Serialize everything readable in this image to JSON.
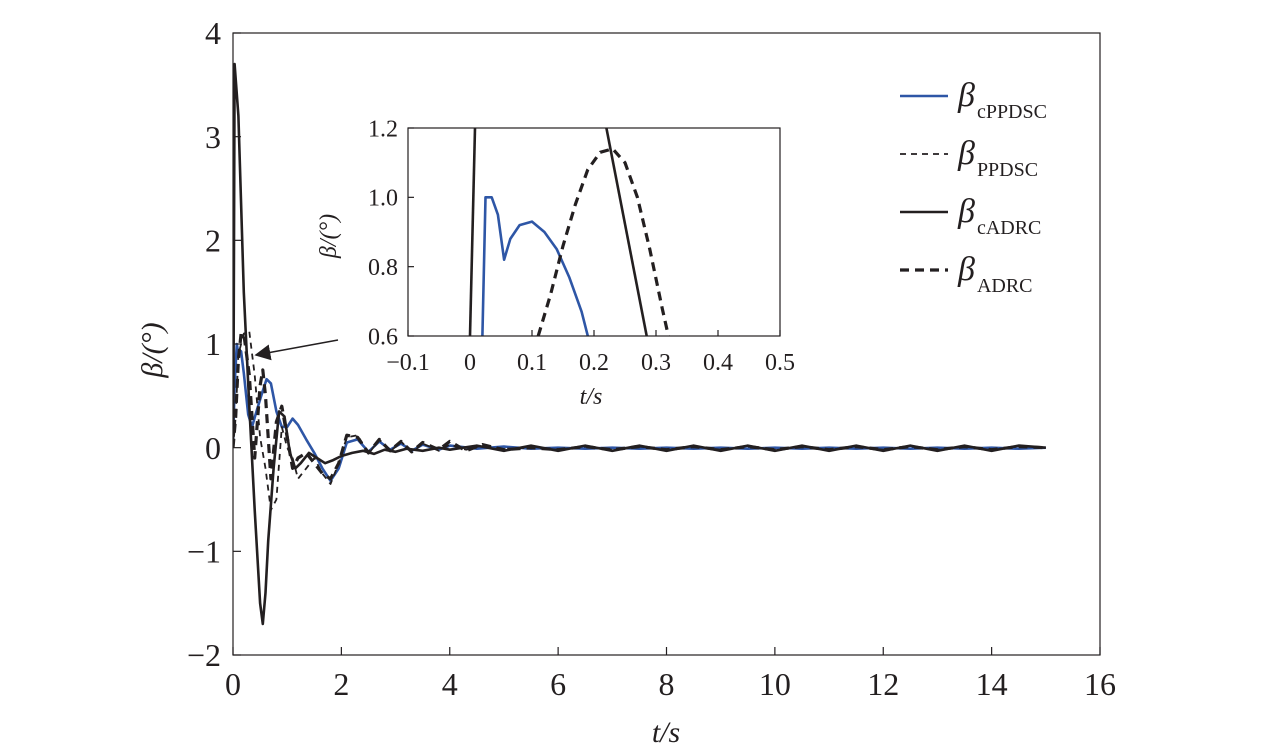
{
  "chart_data": [
    {
      "type": "line",
      "title": "",
      "xlabel": "t/s",
      "ylabel": "β/(°)",
      "xlim": [
        0,
        16
      ],
      "ylim": [
        -2,
        4
      ],
      "x_ticks": [
        0,
        2,
        4,
        6,
        8,
        10,
        12,
        14,
        16
      ],
      "y_ticks": [
        -2,
        -1,
        0,
        1,
        2,
        3,
        4
      ],
      "x_tick_labels": [
        "0",
        "2",
        "4",
        "6",
        "8",
        "10",
        "12",
        "14",
        "16"
      ],
      "y_tick_labels": [
        "−2",
        "−1",
        "0",
        "1",
        "2",
        "3",
        "4"
      ],
      "grid": false,
      "legend_position": "top-right",
      "series": [
        {
          "name": "β cPPDSC",
          "legend_base": "β",
          "legend_sub": "cPPDSC",
          "color": "#2e56a6",
          "style": "solid",
          "x": [
            0,
            0.03,
            0.07,
            0.1,
            0.15,
            0.2,
            0.28,
            0.35,
            0.45,
            0.55,
            0.62,
            0.7,
            0.8,
            0.9,
            1.0,
            1.1,
            1.2,
            1.35,
            1.5,
            1.65,
            1.8,
            1.95,
            2.1,
            2.3,
            2.5,
            2.7,
            2.9,
            3.1,
            3.3,
            3.5,
            3.8,
            4.0,
            4.5,
            5.0,
            5.5,
            6.0,
            6.5,
            7.0,
            7.5,
            8.0,
            8.5,
            9.0,
            9.5,
            10.0,
            10.5,
            11.0,
            11.5,
            12.0,
            12.5,
            13.0,
            13.5,
            14.0,
            14.5,
            15.0
          ],
          "values": [
            0.0,
            0.6,
            1.0,
            0.9,
            0.93,
            0.72,
            0.32,
            0.2,
            0.38,
            0.55,
            0.66,
            0.62,
            0.35,
            0.2,
            0.2,
            0.28,
            0.22,
            0.08,
            -0.05,
            -0.2,
            -0.32,
            -0.2,
            0.05,
            0.08,
            -0.04,
            0.06,
            -0.02,
            0.04,
            -0.03,
            0.03,
            -0.02,
            0.02,
            -0.01,
            0.01,
            -0.01,
            0.0,
            -0.01,
            0.0,
            -0.01,
            0.0,
            -0.01,
            0.0,
            -0.01,
            0.0,
            -0.01,
            0.0,
            -0.01,
            0.0,
            -0.01,
            0.0,
            -0.01,
            0.0,
            -0.01,
            0.0
          ]
        },
        {
          "name": "β PPDSC",
          "legend_base": "β",
          "legend_sub": "PPDSC",
          "color": "#231f20",
          "style": "dashed-thin",
          "x": [
            0,
            0.05,
            0.1,
            0.15,
            0.2,
            0.3,
            0.4,
            0.5,
            0.6,
            0.7,
            0.8,
            0.9,
            1.0,
            1.1,
            1.2,
            1.35,
            1.5,
            1.65,
            1.8,
            1.95,
            2.1,
            2.3,
            2.5,
            2.7,
            2.9,
            3.1,
            3.3,
            3.5,
            3.8,
            4.0,
            4.3,
            4.6,
            5.0,
            5.5,
            6.0,
            6.5,
            7.0,
            7.5,
            8.0,
            8.5,
            9.0,
            9.5,
            10.0,
            10.5,
            11.0,
            11.5,
            12.0,
            12.5,
            13.0,
            13.5,
            14.0,
            14.5,
            15.0
          ],
          "values": [
            0.0,
            0.3,
            0.9,
            1.0,
            1.1,
            1.12,
            0.7,
            0.1,
            -0.2,
            -0.6,
            -0.5,
            0.2,
            0.0,
            -0.1,
            -0.3,
            -0.2,
            -0.1,
            -0.25,
            -0.35,
            -0.15,
            0.1,
            0.12,
            -0.06,
            0.08,
            -0.04,
            0.06,
            -0.05,
            0.04,
            -0.03,
            0.03,
            -0.02,
            0.02,
            -0.01,
            0.0,
            -0.02,
            0.01,
            -0.02,
            0.01,
            -0.02,
            0.01,
            -0.02,
            0.01,
            -0.02,
            0.01,
            -0.02,
            0.01,
            -0.02,
            0.01,
            -0.02,
            0.01,
            -0.02,
            0.01,
            0.0
          ]
        },
        {
          "name": "β cADRC",
          "legend_base": "β",
          "legend_sub": "cADRC",
          "color": "#231f20",
          "style": "solid",
          "x": [
            0,
            0.01,
            0.03,
            0.1,
            0.2,
            0.3,
            0.4,
            0.5,
            0.55,
            0.6,
            0.65,
            0.75,
            0.85,
            0.95,
            1.05,
            1.15,
            1.25,
            1.4,
            1.55,
            1.7,
            1.85,
            2.0,
            2.2,
            2.4,
            2.6,
            2.8,
            3.0,
            3.2,
            3.5,
            3.8,
            4.0,
            4.5,
            5.0,
            5.5,
            6.0,
            6.5,
            7.0,
            7.5,
            8.0,
            8.5,
            9.0,
            9.5,
            10.0,
            10.5,
            11.0,
            11.5,
            12.0,
            12.5,
            13.0,
            13.5,
            14.0,
            14.5,
            15.0
          ],
          "values": [
            0.0,
            0.6,
            3.7,
            3.2,
            1.5,
            0.4,
            -0.6,
            -1.5,
            -1.7,
            -1.4,
            -0.9,
            -0.2,
            0.35,
            0.3,
            -0.05,
            -0.2,
            -0.15,
            -0.05,
            -0.1,
            -0.15,
            -0.12,
            -0.08,
            -0.05,
            -0.03,
            -0.06,
            -0.02,
            -0.04,
            -0.01,
            -0.03,
            0.0,
            -0.02,
            0.02,
            -0.03,
            0.02,
            -0.03,
            0.02,
            -0.03,
            0.02,
            -0.03,
            0.02,
            -0.03,
            0.02,
            -0.03,
            0.02,
            -0.03,
            0.02,
            -0.03,
            0.02,
            -0.03,
            0.02,
            -0.03,
            0.02,
            0.0
          ]
        },
        {
          "name": "β ADRC",
          "legend_base": "β",
          "legend_sub": "ADRC",
          "color": "#231f20",
          "style": "dashed-thick",
          "x": [
            0,
            0.05,
            0.1,
            0.15,
            0.2,
            0.3,
            0.4,
            0.5,
            0.55,
            0.6,
            0.7,
            0.8,
            0.9,
            1.0,
            1.1,
            1.2,
            1.35,
            1.5,
            1.65,
            1.8,
            1.95,
            2.1,
            2.3,
            2.5,
            2.7,
            2.9,
            3.1,
            3.3,
            3.5,
            3.8,
            4.0,
            4.3,
            4.6,
            5.0,
            5.5,
            6.0,
            6.5,
            7.0,
            7.5,
            8.0,
            8.5,
            9.0,
            9.5,
            10.0,
            10.5,
            11.0,
            11.5,
            12.0,
            12.5,
            13.0,
            13.5,
            14.0,
            14.5,
            15.0
          ],
          "values": [
            0.0,
            0.3,
            0.85,
            1.1,
            1.1,
            0.7,
            -0.1,
            0.6,
            0.75,
            0.5,
            -0.3,
            0.25,
            0.4,
            0.1,
            -0.2,
            -0.1,
            -0.05,
            -0.15,
            -0.25,
            -0.3,
            -0.15,
            0.12,
            0.1,
            -0.05,
            0.08,
            -0.03,
            0.06,
            -0.04,
            0.05,
            -0.02,
            0.06,
            -0.03,
            0.03,
            -0.02,
            0.0,
            -0.02,
            0.01,
            -0.02,
            0.01,
            -0.02,
            0.01,
            -0.02,
            0.01,
            -0.02,
            0.01,
            -0.02,
            0.01,
            -0.02,
            0.01,
            -0.02,
            0.01,
            -0.02,
            0.01,
            0.0
          ]
        }
      ]
    },
    {
      "type": "line",
      "title": "",
      "xlabel": "t/s",
      "ylabel": "β/(°)",
      "xlim": [
        -0.1,
        0.5
      ],
      "ylim": [
        0.6,
        1.2
      ],
      "x_ticks": [
        -0.1,
        0,
        0.1,
        0.2,
        0.3,
        0.4,
        0.5
      ],
      "y_ticks": [
        0.6,
        0.8,
        1.0,
        1.2
      ],
      "x_tick_labels": [
        "−0.1",
        "0",
        "0.1",
        "0.2",
        "0.3",
        "0.4",
        "0.5"
      ],
      "y_tick_labels": [
        "0.6",
        "0.8",
        "1.0",
        "1.2"
      ],
      "grid": false,
      "series": [
        {
          "name": "β cPPDSC",
          "color": "#2e56a6",
          "style": "solid",
          "x": [
            0.02,
            0.025,
            0.035,
            0.045,
            0.055,
            0.065,
            0.08,
            0.1,
            0.12,
            0.14,
            0.16,
            0.18,
            0.19
          ],
          "values": [
            0.6,
            1.0,
            1.0,
            0.95,
            0.82,
            0.88,
            0.92,
            0.93,
            0.9,
            0.85,
            0.77,
            0.67,
            0.6
          ]
        },
        {
          "name": "β ADRC",
          "color": "#231f20",
          "style": "dashed-thick",
          "x": [
            0.11,
            0.13,
            0.15,
            0.17,
            0.19,
            0.21,
            0.23,
            0.25,
            0.27,
            0.29,
            0.31,
            0.32
          ],
          "values": [
            0.6,
            0.72,
            0.86,
            0.98,
            1.08,
            1.13,
            1.14,
            1.1,
            1.0,
            0.85,
            0.68,
            0.6
          ]
        },
        {
          "name": "β cADRC rise",
          "color": "#231f20",
          "style": "solid",
          "x": [
            0.0,
            0.008
          ],
          "values": [
            0.6,
            1.2
          ]
        },
        {
          "name": "β cADRC fall",
          "color": "#231f20",
          "style": "solid",
          "x": [
            0.22,
            0.285
          ],
          "values": [
            1.2,
            0.6
          ]
        }
      ]
    }
  ],
  "annotation_arrow": "pointer-to-zoom-region"
}
